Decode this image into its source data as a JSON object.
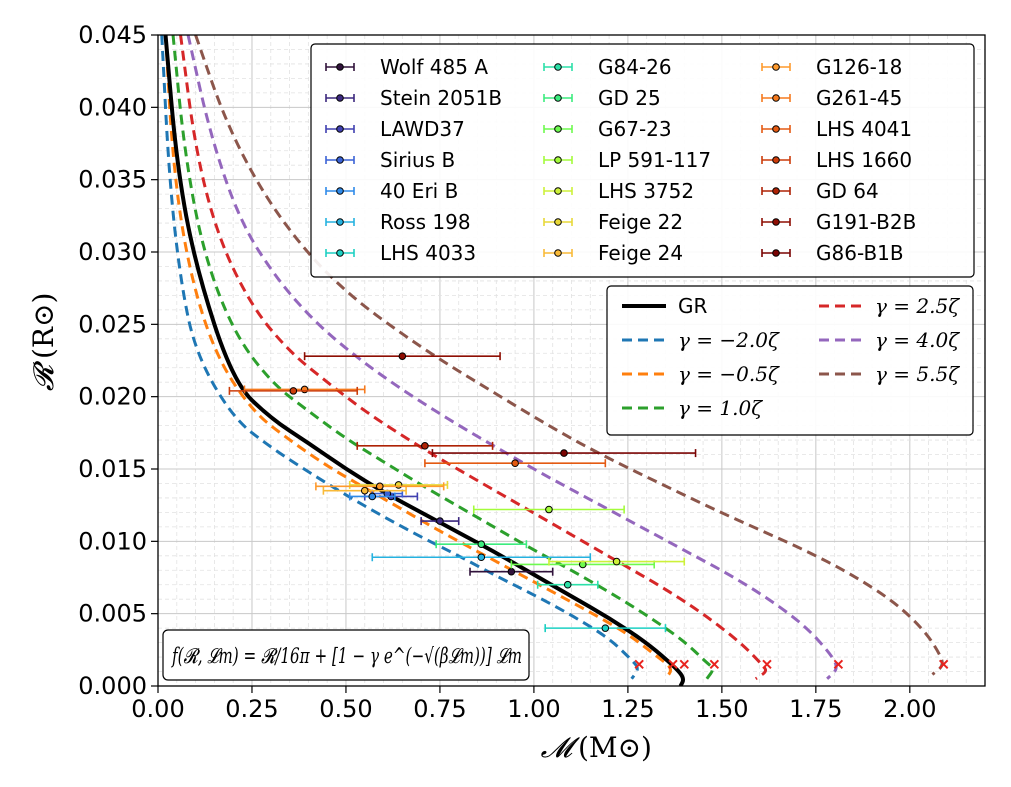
{
  "chart_data": {
    "type": "line",
    "xlabel_sym": "𝓜",
    "xlabel_unit": "(M⊙)",
    "ylabel_sym": "𝓡",
    "ylabel_unit": "(R⊙)",
    "xlim": [
      0.0,
      2.2
    ],
    "ylim": [
      0.0,
      0.045
    ],
    "x_ticks": [
      0.0,
      0.25,
      0.5,
      0.75,
      1.0,
      1.25,
      1.5,
      1.75,
      2.0
    ],
    "x_tick_labels": [
      "0.00",
      "0.25",
      "0.50",
      "0.75",
      "1.00",
      "1.25",
      "1.50",
      "1.75",
      "2.00"
    ],
    "y_ticks": [
      0.0,
      0.005,
      0.01,
      0.015,
      0.02,
      0.025,
      0.03,
      0.035,
      0.04,
      0.045
    ],
    "y_tick_labels": [
      "0.000",
      "0.005",
      "0.010",
      "0.015",
      "0.020",
      "0.025",
      "0.030",
      "0.035",
      "0.040",
      "0.045"
    ],
    "grid": true,
    "formula": "f(𝓡, 𝓛m) = 𝓡/16π + [1 − γ e^(−√(β𝓛m))] 𝓛m",
    "models": [
      {
        "name": "GR",
        "label": "GR",
        "color": "#000000",
        "dash": false,
        "mmax": 1.4,
        "points": [
          [
            0.02,
            0.045
          ],
          [
            0.05,
            0.036
          ],
          [
            0.1,
            0.029
          ],
          [
            0.2,
            0.021
          ],
          [
            0.3,
            0.0185
          ],
          [
            0.4,
            0.0168
          ],
          [
            0.5,
            0.015
          ],
          [
            0.6,
            0.0134
          ],
          [
            0.7,
            0.012
          ],
          [
            0.8,
            0.0106
          ],
          [
            0.9,
            0.0092
          ],
          [
            1.0,
            0.0077
          ],
          [
            1.1,
            0.0062
          ],
          [
            1.2,
            0.0047
          ],
          [
            1.3,
            0.003
          ],
          [
            1.38,
            0.0012
          ],
          [
            1.4,
            0.0005
          ],
          [
            1.39,
            0.0
          ]
        ]
      },
      {
        "name": "gamma_-2.0",
        "label": "γ = −2.0ζ",
        "color": "#1f77b4",
        "dash": true,
        "mmax": 1.28,
        "points": [
          [
            0.01,
            0.045
          ],
          [
            0.03,
            0.035
          ],
          [
            0.06,
            0.028
          ],
          [
            0.1,
            0.023
          ],
          [
            0.2,
            0.0185
          ],
          [
            0.3,
            0.0165
          ],
          [
            0.4,
            0.0148
          ],
          [
            0.5,
            0.0132
          ],
          [
            0.6,
            0.0117
          ],
          [
            0.7,
            0.0103
          ],
          [
            0.8,
            0.009
          ],
          [
            0.9,
            0.0076
          ],
          [
            1.0,
            0.0063
          ],
          [
            1.1,
            0.0049
          ],
          [
            1.2,
            0.0033
          ],
          [
            1.26,
            0.0018
          ],
          [
            1.28,
            0.0012
          ],
          [
            1.26,
            0.0005
          ]
        ]
      },
      {
        "name": "gamma_-0.5",
        "label": "γ = −0.5ζ",
        "color": "#ff7f0e",
        "dash": true,
        "mmax": 1.37,
        "points": [
          [
            0.02,
            0.045
          ],
          [
            0.04,
            0.036
          ],
          [
            0.08,
            0.029
          ],
          [
            0.15,
            0.023
          ],
          [
            0.25,
            0.019
          ],
          [
            0.35,
            0.017
          ],
          [
            0.45,
            0.0152
          ],
          [
            0.55,
            0.0137
          ],
          [
            0.65,
            0.0122
          ],
          [
            0.75,
            0.0107
          ],
          [
            0.85,
            0.0093
          ],
          [
            0.95,
            0.0079
          ],
          [
            1.05,
            0.0065
          ],
          [
            1.15,
            0.0051
          ],
          [
            1.25,
            0.0036
          ],
          [
            1.33,
            0.002
          ],
          [
            1.37,
            0.0012
          ],
          [
            1.35,
            0.0005
          ]
        ]
      },
      {
        "name": "gamma_1.0",
        "label": "γ = 1.0ζ",
        "color": "#2ca02c",
        "dash": true,
        "mmax": 1.48,
        "points": [
          [
            0.04,
            0.045
          ],
          [
            0.07,
            0.037
          ],
          [
            0.12,
            0.03
          ],
          [
            0.2,
            0.0245
          ],
          [
            0.3,
            0.021
          ],
          [
            0.4,
            0.019
          ],
          [
            0.5,
            0.0171
          ],
          [
            0.6,
            0.0155
          ],
          [
            0.7,
            0.0139
          ],
          [
            0.8,
            0.0124
          ],
          [
            0.9,
            0.0109
          ],
          [
            1.0,
            0.0094
          ],
          [
            1.1,
            0.008
          ],
          [
            1.2,
            0.0065
          ],
          [
            1.3,
            0.0049
          ],
          [
            1.4,
            0.0031
          ],
          [
            1.46,
            0.0016
          ],
          [
            1.48,
            0.0012
          ],
          [
            1.46,
            0.0005
          ]
        ]
      },
      {
        "name": "gamma_2.5",
        "label": "γ = 2.5ζ",
        "color": "#d62728",
        "dash": true,
        "mmax": 1.62,
        "points": [
          [
            0.06,
            0.045
          ],
          [
            0.1,
            0.037
          ],
          [
            0.16,
            0.031
          ],
          [
            0.25,
            0.0262
          ],
          [
            0.35,
            0.0231
          ],
          [
            0.45,
            0.021
          ],
          [
            0.55,
            0.019
          ],
          [
            0.65,
            0.0173
          ],
          [
            0.75,
            0.0157
          ],
          [
            0.85,
            0.0142
          ],
          [
            0.95,
            0.0127
          ],
          [
            1.05,
            0.0112
          ],
          [
            1.15,
            0.0097
          ],
          [
            1.25,
            0.0082
          ],
          [
            1.35,
            0.0067
          ],
          [
            1.45,
            0.005
          ],
          [
            1.55,
            0.003
          ],
          [
            1.61,
            0.0014
          ],
          [
            1.62,
            0.001
          ],
          [
            1.59,
            0.0005
          ]
        ]
      },
      {
        "name": "gamma_4.0",
        "label": "γ = 4.0ζ",
        "color": "#9467bd",
        "dash": true,
        "mmax": 1.81,
        "points": [
          [
            0.08,
            0.045
          ],
          [
            0.14,
            0.038
          ],
          [
            0.22,
            0.032
          ],
          [
            0.32,
            0.028
          ],
          [
            0.42,
            0.0251
          ],
          [
            0.52,
            0.0229
          ],
          [
            0.62,
            0.021
          ],
          [
            0.72,
            0.0193
          ],
          [
            0.82,
            0.0177
          ],
          [
            0.92,
            0.0162
          ],
          [
            1.02,
            0.0147
          ],
          [
            1.12,
            0.0133
          ],
          [
            1.22,
            0.0119
          ],
          [
            1.32,
            0.0105
          ],
          [
            1.42,
            0.0091
          ],
          [
            1.52,
            0.0077
          ],
          [
            1.62,
            0.0061
          ],
          [
            1.72,
            0.0042
          ],
          [
            1.79,
            0.0022
          ],
          [
            1.81,
            0.0012
          ],
          [
            1.78,
            0.0005
          ]
        ]
      },
      {
        "name": "gamma_5.5",
        "label": "γ = 5.5ζ",
        "color": "#8c564b",
        "dash": true,
        "mmax": 2.09,
        "points": [
          [
            0.1,
            0.045
          ],
          [
            0.18,
            0.039
          ],
          [
            0.28,
            0.034
          ],
          [
            0.4,
            0.0298
          ],
          [
            0.52,
            0.0268
          ],
          [
            0.64,
            0.0245
          ],
          [
            0.76,
            0.0224
          ],
          [
            0.88,
            0.0205
          ],
          [
            1.0,
            0.0186
          ],
          [
            1.12,
            0.0168
          ],
          [
            1.24,
            0.0152
          ],
          [
            1.36,
            0.0137
          ],
          [
            1.48,
            0.0122
          ],
          [
            1.6,
            0.0108
          ],
          [
            1.72,
            0.0094
          ],
          [
            1.84,
            0.0078
          ],
          [
            1.96,
            0.0058
          ],
          [
            2.04,
            0.0038
          ],
          [
            2.08,
            0.0022
          ],
          [
            2.09,
            0.0014
          ],
          [
            2.06,
            0.0008
          ]
        ]
      }
    ],
    "stars": [
      {
        "name": "Wolf 485 A",
        "color": "#30123b",
        "m": 0.94,
        "r": 0.0079,
        "err": 0.11
      },
      {
        "name": "Stein 2051B",
        "color": "#3c287f",
        "m": 0.75,
        "r": 0.0114,
        "err": 0.05
      },
      {
        "name": "LAWD37",
        "color": "#4040b0",
        "m": 0.62,
        "r": 0.0131,
        "err": 0.07
      },
      {
        "name": "Sirius B",
        "color": "#3a62d6",
        "m": 0.61,
        "r": 0.0133,
        "err": 0.04
      },
      {
        "name": "40 Eri B",
        "color": "#2f8ae9",
        "m": 0.57,
        "r": 0.0131,
        "err": 0.06
      },
      {
        "name": "Ross 198",
        "color": "#25b2e0",
        "m": 0.86,
        "r": 0.0089,
        "err": 0.29
      },
      {
        "name": "LHS 4033",
        "color": "#1cd0c3",
        "m": 1.19,
        "r": 0.004,
        "err": 0.16
      },
      {
        "name": "G84-26",
        "color": "#2ce0a8",
        "m": 1.09,
        "r": 0.007,
        "err": 0.08
      },
      {
        "name": "GD 25",
        "color": "#3cec7e",
        "m": 0.86,
        "r": 0.0098,
        "err": 0.12
      },
      {
        "name": "G67-23",
        "color": "#6efa4f",
        "m": 1.13,
        "r": 0.0084,
        "err": 0.19
      },
      {
        "name": "LP 591-117",
        "color": "#a4fc3b",
        "m": 1.04,
        "r": 0.0122,
        "err": 0.2
      },
      {
        "name": "LHS 3752",
        "color": "#cdf13a",
        "m": 1.22,
        "r": 0.0086,
        "err": 0.18
      },
      {
        "name": "Feige 22",
        "color": "#e8d838",
        "m": 0.64,
        "r": 0.0139,
        "err": 0.13
      },
      {
        "name": "Feige 24",
        "color": "#f9ba38",
        "m": 0.55,
        "r": 0.0135,
        "err": 0.11
      },
      {
        "name": "G126-18",
        "color": "#fe9a2d",
        "m": 0.59,
        "r": 0.0138,
        "err": 0.17
      },
      {
        "name": "G261-45",
        "color": "#f57a1e",
        "m": 0.39,
        "r": 0.0205,
        "err": 0.16
      },
      {
        "name": "LHS 4041",
        "color": "#e45a12",
        "m": 0.95,
        "r": 0.0154,
        "err": 0.24
      },
      {
        "name": "LHS 1660",
        "color": "#cc3c0a",
        "m": 0.36,
        "r": 0.0204,
        "err": 0.17
      },
      {
        "name": "GD 64",
        "color": "#ae2205",
        "m": 0.71,
        "r": 0.0166,
        "err": 0.18
      },
      {
        "name": "G191-B2B",
        "color": "#8e0e03",
        "m": 0.65,
        "r": 0.0228,
        "err": 0.26
      },
      {
        "name": "G86-B1B",
        "color": "#7a0403",
        "m": 1.08,
        "r": 0.0161,
        "err": 0.35
      }
    ]
  }
}
